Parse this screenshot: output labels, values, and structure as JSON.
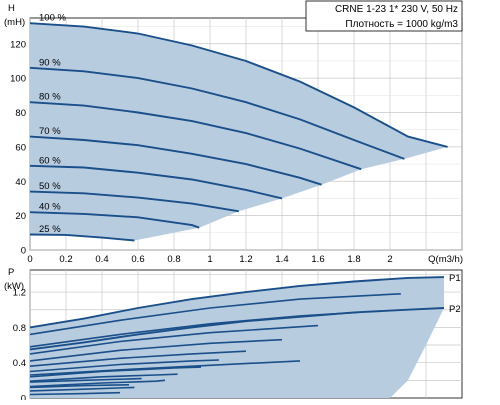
{
  "chart_data": [
    {
      "type": "line",
      "title": "CRNE 1-23   1* 230 V, 50 Hz",
      "subtitle": "Плотность = 1000 kg/m3",
      "ylabel": "H",
      "ylabel_unit": "(mH)",
      "xlabel": "Q(m3/h)",
      "xlim": [
        0,
        2.4
      ],
      "ylim": [
        0,
        135
      ],
      "x_ticks": [
        "0",
        "0.2",
        "0.4",
        "0.6",
        "0.8",
        "1",
        "1.2",
        "1.4",
        "1.6",
        "1.8",
        "2"
      ],
      "y_ticks": [
        "0",
        "20",
        "40",
        "60",
        "80",
        "100",
        "120"
      ],
      "grid": true,
      "region_color": "#b8cce0",
      "curve_color": "#1a4f8a",
      "series": [
        {
          "name": "100 %",
          "points": [
            [
              0,
              132
            ],
            [
              0.3,
              130
            ],
            [
              0.6,
              126
            ],
            [
              0.9,
              119
            ],
            [
              1.2,
              110
            ],
            [
              1.5,
              98
            ],
            [
              1.8,
              83
            ],
            [
              2.1,
              66
            ],
            [
              2.32,
              60
            ]
          ]
        },
        {
          "name": "90 %",
          "points": [
            [
              0,
              106
            ],
            [
              0.3,
              104
            ],
            [
              0.6,
              100
            ],
            [
              0.9,
              94
            ],
            [
              1.2,
              86
            ],
            [
              1.5,
              76
            ],
            [
              1.8,
              64
            ],
            [
              2.08,
              53
            ]
          ]
        },
        {
          "name": "80 %",
          "points": [
            [
              0,
              86
            ],
            [
              0.3,
              84
            ],
            [
              0.6,
              80
            ],
            [
              0.9,
              75
            ],
            [
              1.2,
              68
            ],
            [
              1.5,
              59
            ],
            [
              1.84,
              47
            ]
          ]
        },
        {
          "name": "70 %",
          "points": [
            [
              0,
              66
            ],
            [
              0.3,
              64
            ],
            [
              0.6,
              61
            ],
            [
              0.9,
              56
            ],
            [
              1.2,
              50
            ],
            [
              1.5,
              42
            ],
            [
              1.62,
              38
            ]
          ]
        },
        {
          "name": "60 %",
          "points": [
            [
              0,
              49
            ],
            [
              0.3,
              48
            ],
            [
              0.6,
              45
            ],
            [
              0.9,
              41
            ],
            [
              1.2,
              35
            ],
            [
              1.4,
              30
            ]
          ]
        },
        {
          "name": "50 %",
          "points": [
            [
              0,
              34
            ],
            [
              0.3,
              33
            ],
            [
              0.6,
              30.5
            ],
            [
              0.9,
              27
            ],
            [
              1.16,
              22.5
            ]
          ]
        },
        {
          "name": "40 %",
          "points": [
            [
              0,
              22
            ],
            [
              0.3,
              21
            ],
            [
              0.6,
              19
            ],
            [
              0.9,
              14.5
            ],
            [
              0.94,
              13
            ]
          ]
        },
        {
          "name": "25 %",
          "points": [
            [
              0,
              9
            ],
            [
              0.2,
              8.8
            ],
            [
              0.4,
              7.2
            ],
            [
              0.58,
              5.5
            ]
          ]
        }
      ],
      "region_outline": [
        [
          0,
          132
        ],
        [
          0.3,
          130
        ],
        [
          0.6,
          126
        ],
        [
          0.9,
          119
        ],
        [
          1.2,
          110
        ],
        [
          1.5,
          98
        ],
        [
          1.8,
          83
        ],
        [
          2.1,
          66
        ],
        [
          2.32,
          60
        ],
        [
          2.08,
          53
        ],
        [
          1.84,
          47
        ],
        [
          1.62,
          38
        ],
        [
          1.4,
          30
        ],
        [
          1.16,
          22.5
        ],
        [
          0.94,
          13
        ],
        [
          0.58,
          5.5
        ],
        [
          0.4,
          7.2
        ],
        [
          0.2,
          8.8
        ],
        [
          0,
          9
        ]
      ]
    },
    {
      "type": "line",
      "ylabel": "P",
      "ylabel_unit": "(kW)",
      "xlim": [
        0,
        2.4
      ],
      "ylim": [
        0,
        1.45
      ],
      "y_ticks": [
        "0",
        "0.4",
        "0.8",
        "1.2"
      ],
      "grid": true,
      "region_color": "#b8cce0",
      "curve_color": "#1a4f8a",
      "series": [
        {
          "name": "P1",
          "points": [
            [
              0,
              0.8
            ],
            [
              0.3,
              0.9
            ],
            [
              0.6,
              1.02
            ],
            [
              0.9,
              1.12
            ],
            [
              1.2,
              1.2
            ],
            [
              1.5,
              1.27
            ],
            [
              1.8,
              1.32
            ],
            [
              2.1,
              1.36
            ],
            [
              2.3,
              1.37
            ]
          ]
        },
        {
          "name": "P2",
          "points": [
            [
              0,
              0.55
            ],
            [
              0.3,
              0.63
            ],
            [
              0.6,
              0.72
            ],
            [
              0.9,
              0.8
            ],
            [
              1.2,
              0.87
            ],
            [
              1.5,
              0.92
            ],
            [
              1.8,
              0.97
            ],
            [
              2.1,
              1.0
            ],
            [
              2.3,
              1.02
            ]
          ]
        }
      ],
      "inner_curves": [
        [
          [
            0,
            0.72
          ],
          [
            0.5,
            0.88
          ],
          [
            1.0,
            1.02
          ],
          [
            1.5,
            1.12
          ],
          [
            2.06,
            1.18
          ]
        ],
        [
          [
            0,
            0.58
          ],
          [
            0.5,
            0.72
          ],
          [
            1.0,
            0.84
          ],
          [
            1.5,
            0.93
          ],
          [
            1.82,
            0.97
          ]
        ],
        [
          [
            0,
            0.5
          ],
          [
            0.5,
            0.64
          ],
          [
            1.0,
            0.74
          ],
          [
            1.6,
            0.82
          ]
        ],
        [
          [
            0,
            0.42
          ],
          [
            0.5,
            0.54
          ],
          [
            1.0,
            0.62
          ],
          [
            1.4,
            0.66
          ]
        ],
        [
          [
            0,
            0.36
          ],
          [
            0.5,
            0.45
          ],
          [
            0.9,
            0.5
          ],
          [
            1.2,
            0.53
          ]
        ],
        [
          [
            0,
            0.3
          ],
          [
            0.5,
            0.38
          ],
          [
            0.9,
            0.42
          ],
          [
            1.05,
            0.43
          ]
        ],
        [
          [
            0,
            0.24
          ],
          [
            0.4,
            0.3
          ],
          [
            0.8,
            0.34
          ],
          [
            0.95,
            0.35
          ]
        ],
        [
          [
            0,
            0.19
          ],
          [
            0.4,
            0.24
          ],
          [
            0.7,
            0.26
          ],
          [
            0.82,
            0.27
          ]
        ],
        [
          [
            0,
            0.13
          ],
          [
            0.4,
            0.17
          ],
          [
            0.7,
            0.19
          ],
          [
            0.75,
            0.2
          ]
        ],
        [
          [
            0,
            0.08
          ],
          [
            0.3,
            0.1
          ],
          [
            0.58,
            0.12
          ]
        ],
        [
          [
            0,
            0.04
          ],
          [
            0.3,
            0.05
          ],
          [
            0.5,
            0.06
          ]
        ],
        [
          [
            0,
            0.12
          ],
          [
            0.3,
            0.14
          ],
          [
            0.55,
            0.15
          ]
        ],
        [
          [
            0,
            0.18
          ],
          [
            0.3,
            0.2
          ],
          [
            0.62,
            0.22
          ]
        ],
        [
          [
            0,
            0.26
          ],
          [
            0.5,
            0.32
          ],
          [
            1.0,
            0.37
          ],
          [
            1.5,
            0.42
          ]
        ]
      ],
      "region_outline": [
        [
          0,
          0.8
        ],
        [
          0.3,
          0.9
        ],
        [
          0.6,
          1.02
        ],
        [
          0.9,
          1.12
        ],
        [
          1.2,
          1.2
        ],
        [
          1.5,
          1.27
        ],
        [
          1.8,
          1.32
        ],
        [
          2.1,
          1.36
        ],
        [
          2.3,
          1.37
        ],
        [
          2.3,
          1.02
        ],
        [
          2.2,
          0.6
        ],
        [
          2.1,
          0.2
        ],
        [
          2.0,
          0
        ],
        [
          0,
          0
        ]
      ]
    }
  ]
}
